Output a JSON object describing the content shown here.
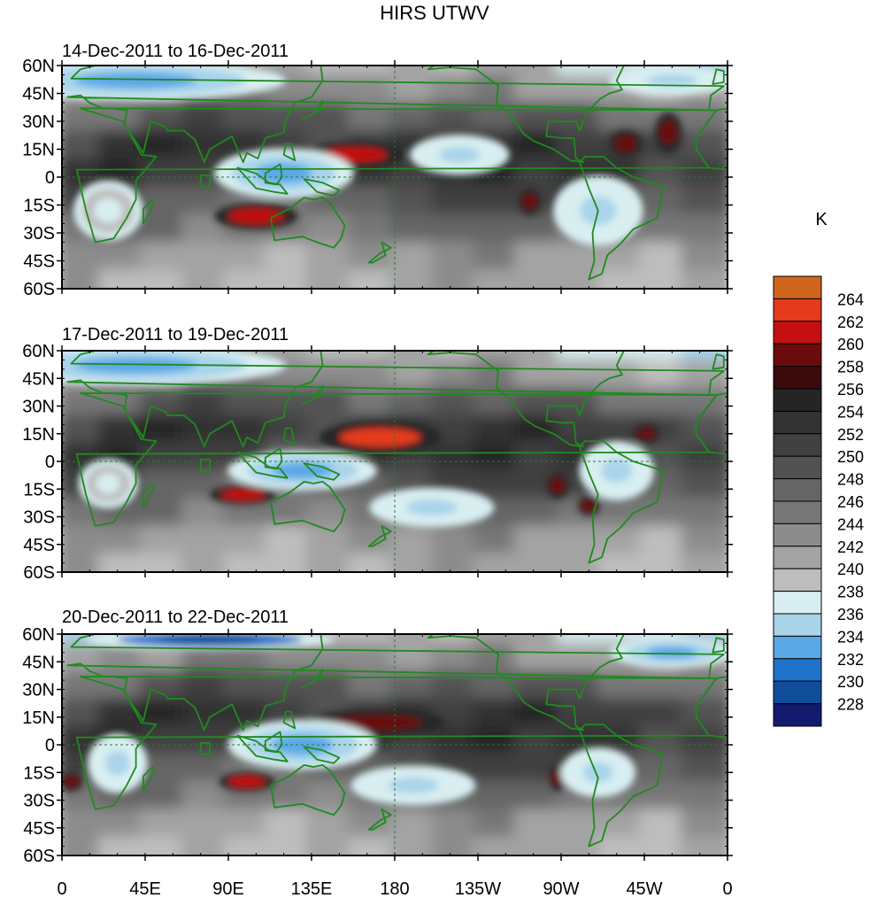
{
  "figure": {
    "title": "HIRS UTWV",
    "colorbar_unit": "K"
  },
  "chart_data": {
    "type": "heatmap",
    "title": "HIRS UTWV",
    "lat_ticks": [
      "60N",
      "45N",
      "30N",
      "15N",
      "0",
      "15S",
      "30S",
      "45S",
      "60S"
    ],
    "lon_ticks": [
      "0",
      "45E",
      "90E",
      "135E",
      "180",
      "135W",
      "90W",
      "45W",
      "0"
    ],
    "lat_range": [
      -60,
      60
    ],
    "lon_range": [
      0,
      360
    ],
    "colorbar": {
      "unit": "K",
      "levels": [
        228,
        230,
        232,
        234,
        236,
        238,
        240,
        242,
        244,
        246,
        248,
        250,
        252,
        254,
        256,
        258,
        260,
        262,
        264
      ],
      "colors": [
        "#141a6e",
        "#104e9a",
        "#1f72c9",
        "#5aa9e6",
        "#a9d4ea",
        "#d8eef0",
        "#bdbdbd",
        "#a3a3a3",
        "#8c8c8c",
        "#777777",
        "#656565",
        "#525252",
        "#414141",
        "#333333",
        "#252525",
        "#3b0a0a",
        "#6b0b0b",
        "#c41010",
        "#e53a1e",
        "#d0651c"
      ]
    },
    "panels": [
      {
        "label": "14-Dec-2011 to 16-Dec-2011",
        "features": [
          {
            "kind": "warm",
            "level": 260,
            "lon": 158,
            "lat": 12,
            "rlon": 18,
            "rlat": 4
          },
          {
            "kind": "warm",
            "level": 260,
            "lon": 105,
            "lat": -21,
            "rlon": 15,
            "rlat": 4
          },
          {
            "kind": "warm",
            "level": 258,
            "lon": 305,
            "lat": 18,
            "rlon": 6,
            "rlat": 4
          },
          {
            "kind": "warm",
            "level": 258,
            "lon": 328,
            "lat": 24,
            "rlon": 5,
            "rlat": 6
          },
          {
            "kind": "warm",
            "level": 258,
            "lon": 253,
            "lat": -13,
            "rlon": 4,
            "rlat": 4
          },
          {
            "kind": "warm",
            "level": 258,
            "lon": 284,
            "lat": -27,
            "rlon": 6,
            "rlat": 3
          },
          {
            "kind": "moist",
            "level": 232,
            "lon": 120,
            "lat": 2,
            "rlon": 28,
            "rlat": 10
          },
          {
            "kind": "moist",
            "level": 234,
            "lon": 215,
            "lat": 12,
            "rlon": 20,
            "rlat": 8
          },
          {
            "kind": "moist",
            "level": 234,
            "lon": 290,
            "lat": -18,
            "rlon": 18,
            "rlat": 14
          },
          {
            "kind": "moist",
            "level": 232,
            "lon": 40,
            "lat": 52,
            "rlon": 60,
            "rlat": 8
          },
          {
            "kind": "moist",
            "level": 234,
            "lon": 330,
            "lat": 52,
            "rlon": 25,
            "rlat": 6
          },
          {
            "kind": "moist",
            "level": 236,
            "lon": 25,
            "lat": -18,
            "rlon": 14,
            "rlat": 12
          }
        ]
      },
      {
        "label": "17-Dec-2011 to 19-Dec-2011",
        "features": [
          {
            "kind": "warm",
            "level": 262,
            "lon": 172,
            "lat": 13,
            "rlon": 22,
            "rlat": 5
          },
          {
            "kind": "warm",
            "level": 260,
            "lon": 98,
            "lat": -18,
            "rlon": 12,
            "rlat": 3
          },
          {
            "kind": "warm",
            "level": 258,
            "lon": 316,
            "lat": 15,
            "rlon": 5,
            "rlat": 3
          },
          {
            "kind": "warm",
            "level": 258,
            "lon": 268,
            "lat": -13,
            "rlon": 4,
            "rlat": 4
          },
          {
            "kind": "warm",
            "level": 258,
            "lon": 285,
            "lat": -24,
            "rlon": 4,
            "rlat": 3
          },
          {
            "kind": "moist",
            "level": 232,
            "lon": 130,
            "lat": -5,
            "rlon": 30,
            "rlat": 8
          },
          {
            "kind": "moist",
            "level": 234,
            "lon": 200,
            "lat": -25,
            "rlon": 25,
            "rlat": 8
          },
          {
            "kind": "moist",
            "level": 232,
            "lon": 40,
            "lat": 52,
            "rlon": 60,
            "rlat": 8
          },
          {
            "kind": "moist",
            "level": 234,
            "lon": 300,
            "lat": -5,
            "rlon": 15,
            "rlat": 12
          },
          {
            "kind": "moist",
            "level": 236,
            "lon": 25,
            "lat": -12,
            "rlon": 12,
            "rlat": 10
          }
        ]
      },
      {
        "label": "20-Dec-2011 to 22-Dec-2011",
        "features": [
          {
            "kind": "warm",
            "level": 258,
            "lon": 170,
            "lat": 12,
            "rlon": 25,
            "rlat": 4
          },
          {
            "kind": "warm",
            "level": 260,
            "lon": 100,
            "lat": -20,
            "rlon": 10,
            "rlat": 3
          },
          {
            "kind": "warm",
            "level": 258,
            "lon": 268,
            "lat": -18,
            "rlon": 3,
            "rlat": 4
          },
          {
            "kind": "warm",
            "level": 258,
            "lon": 5,
            "lat": -20,
            "rlon": 4,
            "rlat": 3
          },
          {
            "kind": "moist",
            "level": 228,
            "lon": 80,
            "lat": 57,
            "rlon": 50,
            "rlat": 4
          },
          {
            "kind": "moist",
            "level": 232,
            "lon": 130,
            "lat": 0,
            "rlon": 30,
            "rlat": 10
          },
          {
            "kind": "moist",
            "level": 234,
            "lon": 190,
            "lat": -22,
            "rlon": 25,
            "rlat": 8
          },
          {
            "kind": "moist",
            "level": 234,
            "lon": 30,
            "lat": -10,
            "rlon": 12,
            "rlat": 12
          },
          {
            "kind": "moist",
            "level": 234,
            "lon": 290,
            "lat": -15,
            "rlon": 15,
            "rlat": 10
          },
          {
            "kind": "moist",
            "level": 232,
            "lon": 330,
            "lat": 50,
            "rlon": 25,
            "rlat": 6
          }
        ]
      }
    ]
  }
}
